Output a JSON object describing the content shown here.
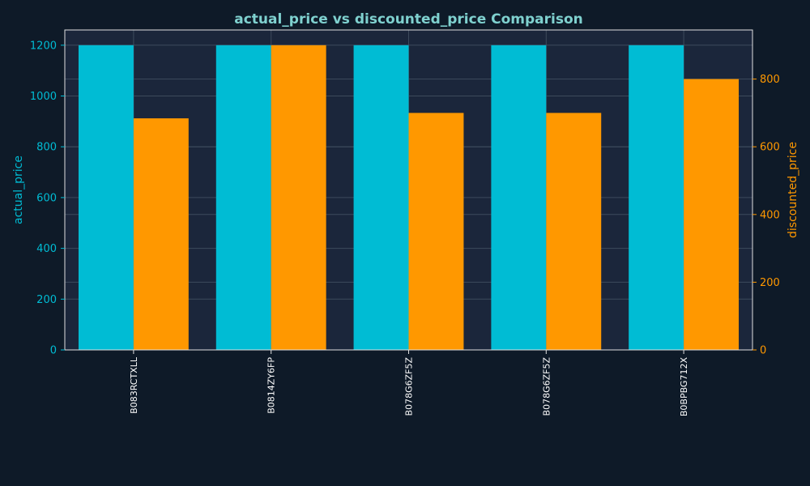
{
  "chart_data": {
    "type": "bar",
    "title": "actual_price vs discounted_price Comparison",
    "categories": [
      "B083RCTXLL",
      "B0814ZY6FP",
      "B078G6ZF5Z",
      "B078G6ZF5Z",
      "B0BPBG712X"
    ],
    "series": [
      {
        "name": "actual_price",
        "axis": "left",
        "values": [
          1200,
          1200,
          1200,
          1200,
          1200
        ],
        "color": "#00bcd4"
      },
      {
        "name": "discounted_price",
        "axis": "right",
        "values": [
          684,
          900,
          700,
          700,
          800
        ],
        "color": "#ff9800"
      }
    ],
    "ylabel_left": "actual_price",
    "ylabel_right": "discounted_price",
    "ylim_left": [
      0,
      1260
    ],
    "ylim_right": [
      0,
      945
    ],
    "yticks_left": [
      0,
      200,
      400,
      600,
      800,
      1000,
      1200
    ],
    "yticks_right": [
      0,
      200,
      400,
      600,
      800
    ],
    "grid": true,
    "colors": {
      "background": "#0e1a28",
      "plot_background": "#1b263b",
      "title": "#7fd1cf",
      "left_axis": "#00bcd4",
      "right_axis": "#ff9800",
      "category_text": "#ffffff",
      "frame": "#e0e0e0",
      "grid": "#3d4a5c"
    }
  }
}
